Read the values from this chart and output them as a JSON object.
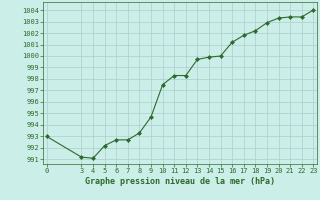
{
  "x": [
    0,
    3,
    4,
    5,
    6,
    7,
    8,
    9,
    10,
    11,
    12,
    13,
    14,
    15,
    16,
    17,
    18,
    19,
    20,
    21,
    22,
    23
  ],
  "y": [
    993.0,
    991.2,
    991.1,
    992.2,
    992.7,
    992.7,
    993.3,
    994.7,
    997.5,
    998.3,
    998.3,
    999.7,
    999.9,
    1000.0,
    1001.2,
    1001.8,
    1002.2,
    1002.9,
    1003.3,
    1003.4,
    1003.4,
    1004.0
  ],
  "line_color": "#2d6a2d",
  "marker_color": "#2d6a2d",
  "bg_color": "#cceee8",
  "grid_color": "#aacccc",
  "xlabel": "Graphe pression niveau de la mer (hPa)",
  "xticks": [
    0,
    3,
    4,
    5,
    6,
    7,
    8,
    9,
    10,
    11,
    12,
    13,
    14,
    15,
    16,
    17,
    18,
    19,
    20,
    21,
    22,
    23
  ],
  "yticks": [
    991,
    992,
    993,
    994,
    995,
    996,
    997,
    998,
    999,
    1000,
    1001,
    1002,
    1003,
    1004
  ],
  "ylim": [
    990.6,
    1004.7
  ],
  "xlim": [
    -0.3,
    23.3
  ],
  "tick_fontsize": 5.0,
  "xlabel_fontsize": 6.0
}
